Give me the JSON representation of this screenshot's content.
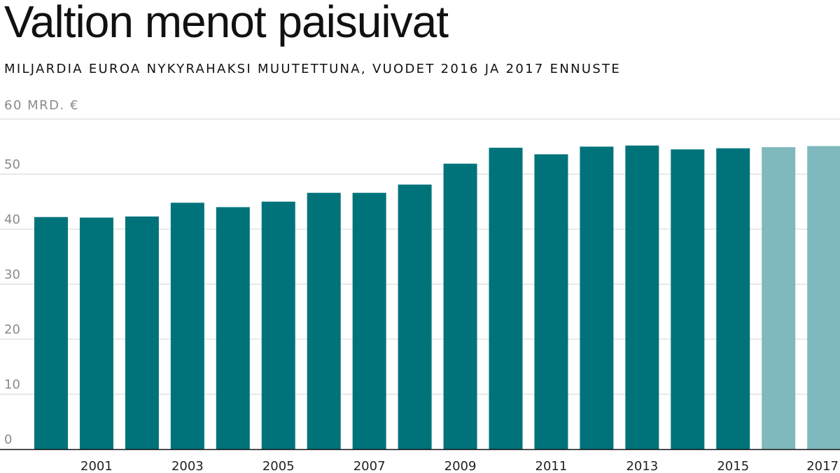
{
  "title": "Valtion menot paisuivat",
  "subtitle": "MILJARDIA EUROA NYKYRAHAKSI MUUTETTUNA, VUODET 2016 JA 2017 ENNUSTE",
  "unit_label": "60 MRD. €",
  "colors": {
    "actual": "#00737a",
    "forecast": "#80b9bd",
    "grid": "#d6d6d6",
    "axis": "#111111"
  },
  "chart_data": {
    "type": "bar",
    "title": "Valtion menot paisuivat",
    "subtitle": "MILJARDIA EUROA NYKYRAHAKSI MUUTETTUNA, VUODET 2016 JA 2017 ENNUSTE",
    "ylabel": "60 MRD. €",
    "ylim": [
      0,
      60
    ],
    "yticks": [
      "0",
      "10",
      "20",
      "30",
      "40",
      "50"
    ],
    "categories": [
      "2000",
      "2001",
      "2002",
      "2003",
      "2004",
      "2005",
      "2006",
      "2007",
      "2008",
      "2009",
      "2010",
      "2011",
      "2012",
      "2013",
      "2014",
      "2015",
      "2016",
      "2017"
    ],
    "x_tick_labels": [
      "",
      "2001",
      "",
      "2003",
      "",
      "2005",
      "",
      "2007",
      "",
      "2009",
      "",
      "2011",
      "",
      "2013",
      "",
      "2015",
      "",
      "2017"
    ],
    "values": [
      42.2,
      42.1,
      42.3,
      44.8,
      44.0,
      45.0,
      46.6,
      46.6,
      48.1,
      51.9,
      54.8,
      53.6,
      55.0,
      55.2,
      54.5,
      54.7,
      54.9,
      55.1
    ],
    "forecast": [
      false,
      false,
      false,
      false,
      false,
      false,
      false,
      false,
      false,
      false,
      false,
      false,
      false,
      false,
      false,
      false,
      true,
      true
    ],
    "grid": true
  }
}
